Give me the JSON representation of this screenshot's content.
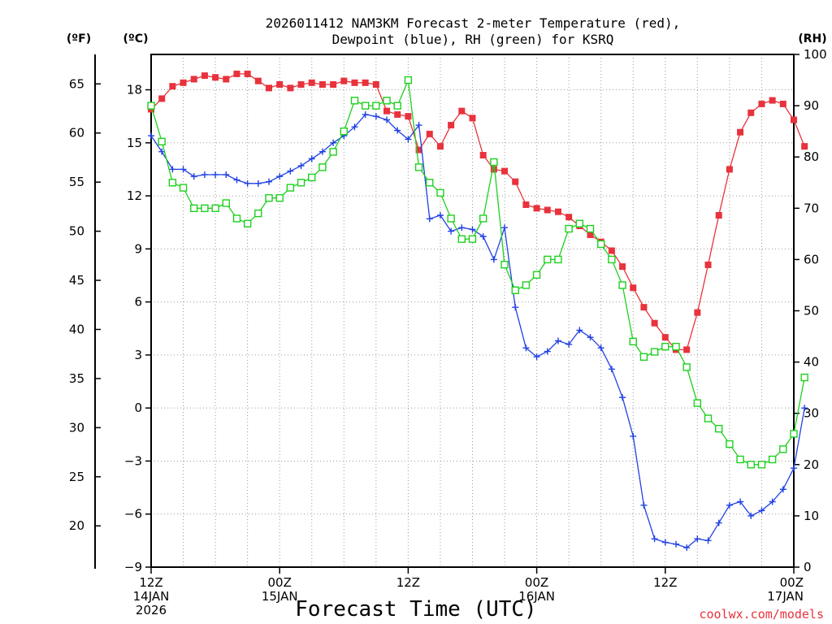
{
  "chart_data": {
    "type": "line",
    "title_line1": "2026011412 NAM3KM Forecast 2-meter Temperature (red),",
    "title_line2": "Dewpoint (blue), RH (green) for KSRQ",
    "xlabel": "Forecast Time (UTC)",
    "credit": "coolwx.com/models",
    "unit_f": "(ºF)",
    "unit_c": "(ºC)",
    "unit_rh": "(RH)",
    "x_range_hours": [
      0,
      60
    ],
    "y_range_c": [
      -9,
      20
    ],
    "y_range_rh": [
      0,
      100
    ],
    "y_ticks_c": [
      "18",
      "15",
      "12",
      "9",
      "6",
      "3",
      "0",
      "−3",
      "−6",
      "−9"
    ],
    "y_ticks_f": [
      "65",
      "60",
      "55",
      "50",
      "45",
      "40",
      "35",
      "30",
      "25",
      "20"
    ],
    "y_ticks_rh": [
      "100",
      "90",
      "80",
      "70",
      "60",
      "50",
      "40",
      "30",
      "20",
      "10",
      "0"
    ],
    "x_ticks": [
      {
        "hour": 0,
        "lines": [
          "12Z",
          "14JAN",
          "2026"
        ]
      },
      {
        "hour": 12,
        "lines": [
          "00Z",
          "15JAN"
        ]
      },
      {
        "hour": 24,
        "lines": [
          "12Z"
        ]
      },
      {
        "hour": 36,
        "lines": [
          "00Z",
          "16JAN"
        ]
      },
      {
        "hour": 48,
        "lines": [
          "12Z"
        ]
      },
      {
        "hour": 60,
        "lines": [
          "00Z",
          "17JAN"
        ]
      }
    ],
    "series": [
      {
        "name": "Temperature",
        "units": "C",
        "color": "#e8323c",
        "marker": "filled-square",
        "values": [
          16.9,
          17.5,
          18.2,
          18.4,
          18.6,
          18.8,
          18.7,
          18.6,
          18.9,
          18.9,
          18.5,
          18.1,
          18.3,
          18.1,
          18.3,
          18.4,
          18.3,
          18.3,
          18.5,
          18.4,
          18.4,
          18.3,
          16.8,
          16.6,
          16.5,
          14.6,
          15.5,
          14.8,
          16.0,
          16.8,
          16.4,
          14.3,
          13.5,
          13.4,
          12.8,
          11.5,
          11.3,
          11.2,
          11.1,
          10.8,
          10.3,
          9.8,
          9.4,
          8.9,
          8.0,
          6.8,
          5.7,
          4.8,
          4.0,
          3.3,
          3.3,
          5.4,
          8.1,
          10.9,
          13.5,
          15.6,
          16.7,
          17.2,
          17.4,
          17.2,
          16.3,
          14.8
        ]
      },
      {
        "name": "Dewpoint",
        "units": "C",
        "color": "#2141e3",
        "marker": "plus",
        "values": [
          15.4,
          14.5,
          13.5,
          13.5,
          13.1,
          13.2,
          13.2,
          13.2,
          12.9,
          12.7,
          12.7,
          12.8,
          13.1,
          13.4,
          13.7,
          14.1,
          14.5,
          15.0,
          15.4,
          15.9,
          16.6,
          16.5,
          16.3,
          15.7,
          15.2,
          16.0,
          10.7,
          10.9,
          10.0,
          10.2,
          10.1,
          9.7,
          8.4,
          10.2,
          5.7,
          3.4,
          2.9,
          3.2,
          3.8,
          3.6,
          4.4,
          4.0,
          3.4,
          2.2,
          0.6,
          -1.6,
          -5.5,
          -7.4,
          -7.6,
          -7.7,
          -7.9,
          -7.4,
          -7.5,
          -6.5,
          -5.5,
          -5.3,
          -6.1,
          -5.8,
          -5.3,
          -4.6,
          -3.4,
          0.0
        ]
      },
      {
        "name": "Relative Humidity",
        "units": "%",
        "color": "#1ed01e",
        "marker": "open-square",
        "values": [
          90,
          83,
          75,
          74,
          70,
          70,
          70,
          71,
          68,
          67,
          69,
          72,
          72,
          74,
          75,
          76,
          78,
          81,
          85,
          91,
          90,
          90,
          91,
          90,
          95,
          78,
          75,
          73,
          68,
          64,
          64,
          68,
          79,
          59,
          54,
          55,
          57,
          60,
          60,
          66,
          67,
          66,
          63,
          60,
          55,
          44,
          41,
          42,
          43,
          43,
          39,
          32,
          29,
          27,
          24,
          21,
          20,
          20,
          21,
          23,
          26,
          37
        ]
      }
    ]
  }
}
